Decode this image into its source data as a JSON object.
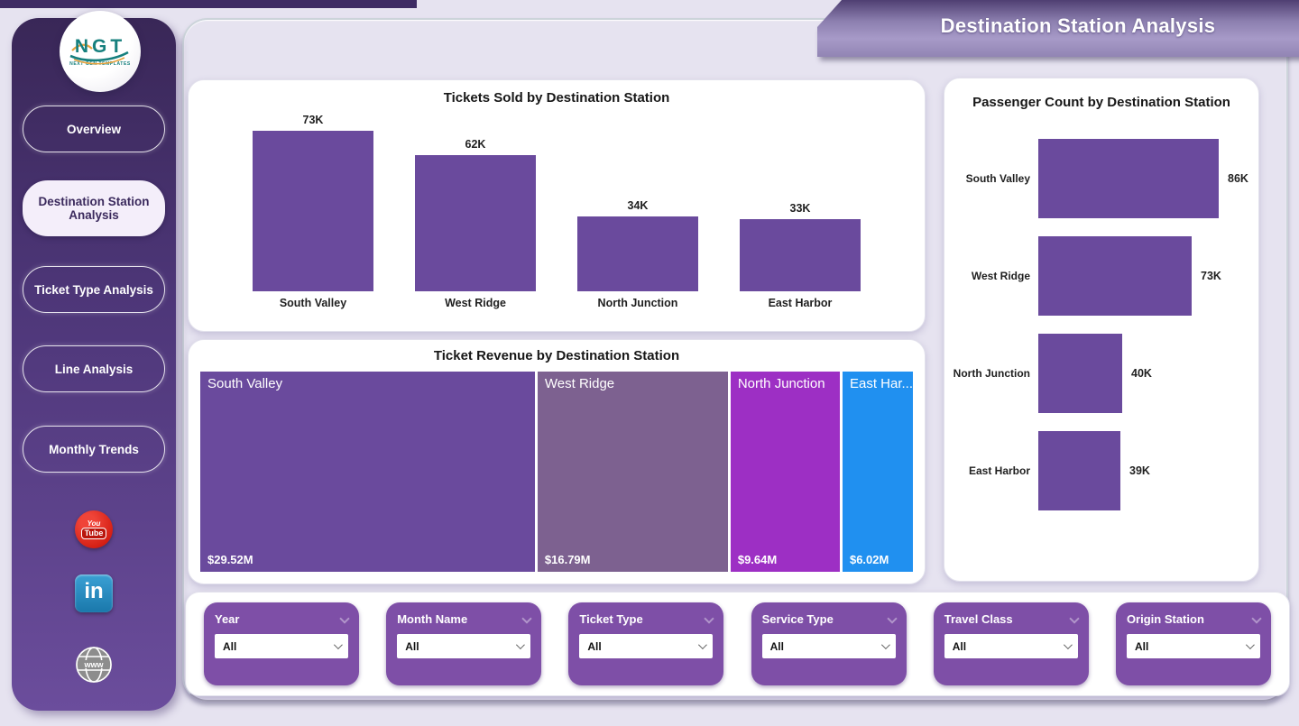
{
  "header": {
    "title": "Destination Station Analysis"
  },
  "sidebar": {
    "logo": {
      "text": "NGT",
      "subtext": "NEXT GEN TEMPLATES"
    },
    "items": [
      {
        "label": "Overview",
        "active": false
      },
      {
        "label": "Destination Station Analysis",
        "active": true
      },
      {
        "label": "Ticket Type Analysis",
        "active": false
      },
      {
        "label": "Line Analysis",
        "active": false
      },
      {
        "label": "Monthly Trends",
        "active": false
      }
    ],
    "social": [
      {
        "name": "youtube",
        "you": "You",
        "tube": "Tube"
      },
      {
        "name": "linkedin",
        "label": "in"
      },
      {
        "name": "website",
        "label": "www"
      }
    ]
  },
  "chart_data": [
    {
      "type": "bar",
      "title": "Tickets Sold by Destination Station",
      "categories": [
        "South Valley",
        "West Ridge",
        "North Junction",
        "East Harbor"
      ],
      "values": [
        73,
        62,
        34,
        33
      ],
      "value_labels": [
        "73K",
        "62K",
        "34K",
        "33K"
      ],
      "unit": "thousand tickets",
      "bar_color": "#6a4a9d",
      "ylim": [
        0,
        80
      ],
      "grid": false,
      "legend": "none"
    },
    {
      "type": "treemap",
      "title": "Ticket Revenue by Destination Station",
      "categories": [
        "South Valley",
        "West Ridge",
        "North Junction",
        "East Har..."
      ],
      "values": [
        29.52,
        16.79,
        9.64,
        6.02
      ],
      "value_labels": [
        "$29.52M",
        "$16.79M",
        "$9.64M",
        "$6.02M"
      ],
      "colors": [
        "#6a4a9d",
        "#7d6190",
        "#9d2fc4",
        "#2090f0"
      ]
    },
    {
      "type": "bar-horizontal",
      "title": "Passenger Count by Destination Station",
      "categories": [
        "South Valley",
        "West Ridge",
        "North Junction",
        "East Harbor"
      ],
      "values": [
        86,
        73,
        40,
        39
      ],
      "value_labels": [
        "86K",
        "73K",
        "40K",
        "39K"
      ],
      "unit": "thousand passengers",
      "bar_color": "#6a4a9d",
      "xlim": [
        0,
        95
      ],
      "grid": false,
      "legend": "none"
    }
  ],
  "filters": {
    "items": [
      {
        "label": "Year",
        "value": "All"
      },
      {
        "label": "Month Name",
        "value": "All"
      },
      {
        "label": "Ticket Type",
        "value": "All"
      },
      {
        "label": "Service Type",
        "value": "All"
      },
      {
        "label": "Travel Class",
        "value": "All"
      },
      {
        "label": "Origin Station",
        "value": "All"
      }
    ]
  },
  "colors": {
    "accent_purple": "#6a4a9d",
    "slicer_purple": "#7e4fa7",
    "sidebar_top": "#392757",
    "sidebar_bottom": "#6b4d9c",
    "background": "#e6e3f0"
  }
}
